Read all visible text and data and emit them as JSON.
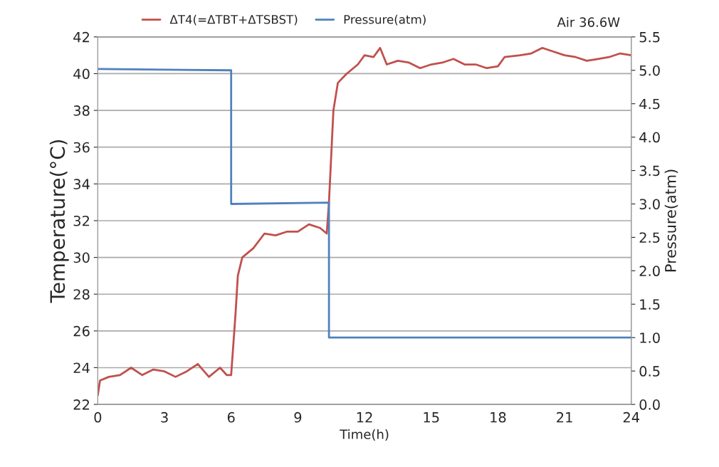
{
  "chart_data": {
    "type": "line",
    "xlabel": "Time(h)",
    "ylabel": "Temperature(°C)",
    "y2label": "Pressure(atm)",
    "annotations": [
      "Air 36.6W"
    ],
    "xlim": [
      0,
      24
    ],
    "xticks": [
      0,
      3,
      6,
      9,
      12,
      15,
      18,
      21,
      24
    ],
    "ylim": [
      22,
      42
    ],
    "yticks": [
      22,
      24,
      26,
      28,
      30,
      32,
      34,
      36,
      38,
      40,
      42
    ],
    "y2lim": [
      0,
      5.5
    ],
    "y2ticks": [
      {
        "value": 0,
        "label": "0.0"
      },
      {
        "value": 0.5,
        "label": "0.5"
      },
      {
        "value": 1,
        "label": "1.0"
      },
      {
        "value": 1.5,
        "label": "1.5"
      },
      {
        "value": 2,
        "label": "2.0"
      },
      {
        "value": 2.5,
        "label": "2.5"
      },
      {
        "value": 3,
        "label": "3.0"
      },
      {
        "value": 3.5,
        "label": "3.5"
      },
      {
        "value": 4,
        "label": "4.0"
      },
      {
        "value": 4.5,
        "label": "4.5"
      },
      {
        "value": 5,
        "label": "5.0"
      },
      {
        "value": 5.5,
        "label": "5.5"
      }
    ],
    "grid": "y",
    "legend": "top",
    "marker": "none",
    "line_style": "solid",
    "series": [
      {
        "name": "ΔT4(=ΔTBT+ΔTSBST)",
        "color": "#c0504d",
        "x": [
          0,
          0.1,
          0.5,
          1,
          1.5,
          2,
          2.5,
          3,
          3.5,
          4,
          4.5,
          5,
          5.5,
          5.8,
          6.0,
          6.2,
          6.3,
          6.5,
          7,
          7.5,
          8,
          8.5,
          9,
          9.5,
          10,
          10.3,
          10.4,
          10.6,
          10.8,
          11.2,
          11.7,
          12,
          12.4,
          12.7,
          13,
          13.5,
          14,
          14.5,
          15,
          15.5,
          16,
          16.5,
          17,
          17.5,
          18,
          18.3,
          19,
          19.5,
          20,
          20.5,
          21,
          21.5,
          22,
          22.5,
          23,
          23.5,
          24
        ],
        "values": [
          22.5,
          23.3,
          23.5,
          23.6,
          24.0,
          23.6,
          23.9,
          23.8,
          23.5,
          23.8,
          24.2,
          23.5,
          24.0,
          23.6,
          23.6,
          27,
          29,
          30,
          30.5,
          31.3,
          31.2,
          31.4,
          31.4,
          31.8,
          31.6,
          31.3,
          33,
          38,
          39.5,
          40,
          40.5,
          41,
          40.9,
          41.4,
          40.5,
          40.7,
          40.6,
          40.3,
          40.5,
          40.6,
          40.8,
          40.5,
          40.5,
          40.3,
          40.4,
          40.9,
          41.0,
          41.1,
          41.4,
          41.2,
          41.0,
          40.9,
          40.7,
          40.8,
          40.9,
          41.1,
          41.0
        ]
      },
      {
        "name": "Pressure(atm)",
        "color": "#4f81bd",
        "axis": "y2",
        "x": [
          0,
          6,
          6,
          10.4,
          10.4,
          24
        ],
        "values": [
          5.02,
          5.0,
          3.0,
          3.02,
          1.0,
          1.0
        ]
      }
    ]
  }
}
